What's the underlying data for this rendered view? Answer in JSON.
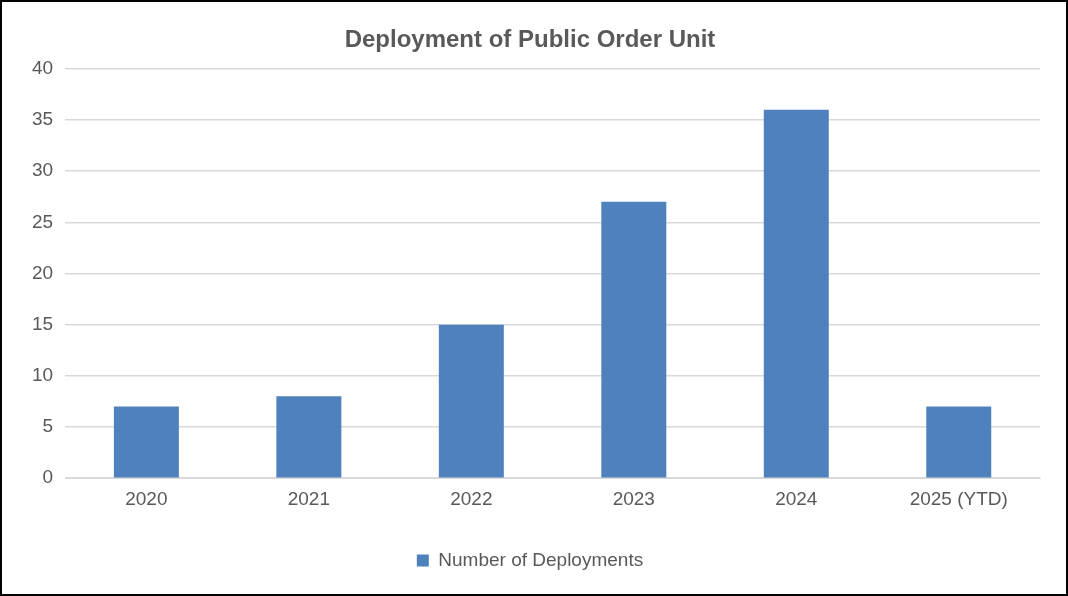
{
  "chart_data": {
    "type": "bar",
    "title": "Deployment of Public Order Unit",
    "categories": [
      "2020",
      "2021",
      "2022",
      "2023",
      "2024",
      "2025 (YTD)"
    ],
    "series": [
      {
        "name": "Number of Deployments",
        "color": "#4f81bd",
        "values": [
          7,
          8,
          15,
          27,
          36,
          7
        ]
      }
    ],
    "ylim": [
      0,
      40
    ],
    "yticks": [
      0,
      5,
      10,
      15,
      20,
      25,
      30,
      35,
      40
    ],
    "grid": "y",
    "legend": "bottom"
  }
}
